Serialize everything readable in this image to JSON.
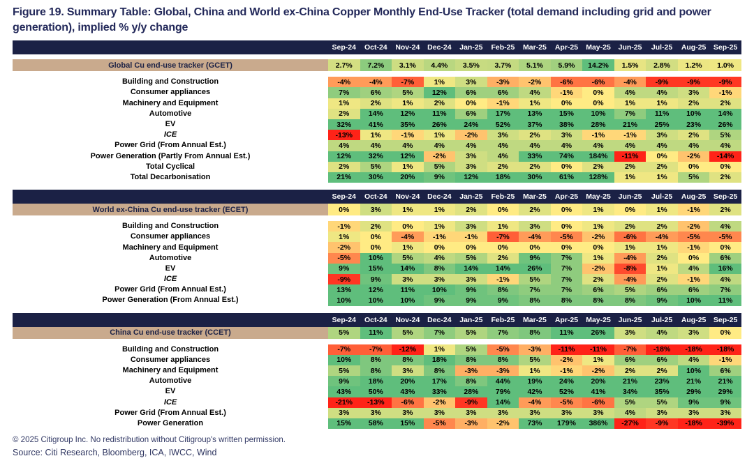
{
  "title": "Figure 19. Summary Table: Global, China and World ex-China Copper Monthly End-Use Tracker (total demand including grid and power generation), implied % y/y change",
  "footer": {
    "copyright": "© 2025 Citigroup Inc. No redistribution without Citigroup's written permission.",
    "source": "Source: Citi Research, Bloomberg, ICA, IWCC, Wind"
  },
  "chart_data": {
    "type": "heatmap",
    "title": "Figure 19. Summary Table: Global, China and World ex-China Copper Monthly End-Use Tracker (total demand including grid and power generation), implied % y/y change",
    "unit": "% y/y",
    "columns": [
      "Sep-24",
      "Oct-24",
      "Nov-24",
      "Dec-24",
      "Jan-25",
      "Feb-25",
      "Mar-25",
      "Apr-25",
      "May-25",
      "Jun-25",
      "Jul-25",
      "Aug-25",
      "Sep-25"
    ],
    "color_scale": {
      "negative": "#ff2318",
      "zero": "#ffeb84",
      "positive": "#5fbe7c",
      "clamp_abs_pct": 10
    },
    "tables": [
      {
        "id": "gcet",
        "tracker_label": "Global Cu end-use tracker (GCET)",
        "tracker_values": [
          "2.7%",
          "7.2%",
          "3.1%",
          "4.4%",
          "3.5%",
          "3.7%",
          "5.1%",
          "5.9%",
          "14.2%",
          "1.5%",
          "2.8%",
          "1.2%",
          "1.0%"
        ],
        "rows": [
          {
            "label": "Building and Construction",
            "italic": false,
            "values": [
              "-4%",
              "-4%",
              "-7%",
              "1%",
              "3%",
              "-3%",
              "-2%",
              "-6%",
              "-6%",
              "-4%",
              "-9%",
              "-9%",
              "-9%"
            ]
          },
          {
            "label": "Consumer appliances",
            "italic": false,
            "values": [
              "7%",
              "6%",
              "5%",
              "12%",
              "6%",
              "6%",
              "4%",
              "-1%",
              "0%",
              "4%",
              "4%",
              "3%",
              "-1%"
            ]
          },
          {
            "label": "Machinery and Equipment",
            "italic": false,
            "values": [
              "1%",
              "2%",
              "1%",
              "2%",
              "0%",
              "-1%",
              "1%",
              "0%",
              "0%",
              "1%",
              "1%",
              "2%",
              "2%"
            ]
          },
          {
            "label": "Automotive",
            "italic": false,
            "values": [
              "2%",
              "14%",
              "12%",
              "11%",
              "6%",
              "17%",
              "13%",
              "15%",
              "10%",
              "7%",
              "11%",
              "10%",
              "14%"
            ]
          },
          {
            "label": "EV",
            "italic": false,
            "values": [
              "32%",
              "41%",
              "35%",
              "26%",
              "24%",
              "52%",
              "37%",
              "38%",
              "28%",
              "21%",
              "25%",
              "23%",
              "26%"
            ]
          },
          {
            "label": "ICE",
            "italic": true,
            "values": [
              "-13%",
              "1%",
              "-1%",
              "1%",
              "-2%",
              "3%",
              "2%",
              "3%",
              "-1%",
              "-1%",
              "3%",
              "2%",
              "5%"
            ]
          },
          {
            "label": "Power Grid (From Annual Est.)",
            "italic": false,
            "values": [
              "4%",
              "4%",
              "4%",
              "4%",
              "4%",
              "4%",
              "4%",
              "4%",
              "4%",
              "4%",
              "4%",
              "4%",
              "4%"
            ]
          },
          {
            "label": "Power Generation (Partly From Annual Est.)",
            "italic": false,
            "values": [
              "12%",
              "32%",
              "12%",
              "-2%",
              "3%",
              "4%",
              "33%",
              "74%",
              "184%",
              "-11%",
              "0%",
              "-2%",
              "-14%"
            ]
          },
          {
            "label": "Total Cyclical",
            "italic": false,
            "values": [
              "2%",
              "5%",
              "1%",
              "5%",
              "3%",
              "2%",
              "2%",
              "0%",
              "2%",
              "2%",
              "2%",
              "0%",
              "0%"
            ]
          },
          {
            "label": "Total Decarbonisation",
            "italic": false,
            "values": [
              "21%",
              "30%",
              "20%",
              "9%",
              "12%",
              "18%",
              "30%",
              "61%",
              "128%",
              "1%",
              "1%",
              "5%",
              "2%"
            ]
          }
        ]
      },
      {
        "id": "ecet",
        "tracker_label": "World ex-China Cu end-use tracker (ECET)",
        "tracker_values": [
          "0%",
          "3%",
          "1%",
          "1%",
          "2%",
          "0%",
          "2%",
          "0%",
          "1%",
          "0%",
          "1%",
          "-1%",
          "2%"
        ],
        "rows": [
          {
            "label": "Building and Construction",
            "italic": false,
            "values": [
              "-1%",
              "2%",
              "0%",
              "1%",
              "3%",
              "1%",
              "3%",
              "0%",
              "1%",
              "2%",
              "2%",
              "-2%",
              "4%"
            ]
          },
          {
            "label": "Consumer appliances",
            "italic": false,
            "values": [
              "1%",
              "0%",
              "-4%",
              "-1%",
              "-1%",
              "-7%",
              "-4%",
              "-5%",
              "-2%",
              "-6%",
              "-4%",
              "-5%",
              "-5%"
            ]
          },
          {
            "label": "Machinery and Equipment",
            "italic": false,
            "values": [
              "-2%",
              "0%",
              "1%",
              "0%",
              "0%",
              "0%",
              "0%",
              "0%",
              "0%",
              "1%",
              "1%",
              "-1%",
              "0%"
            ]
          },
          {
            "label": "Automotive",
            "italic": false,
            "values": [
              "-5%",
              "10%",
              "5%",
              "4%",
              "5%",
              "2%",
              "9%",
              "7%",
              "1%",
              "-4%",
              "2%",
              "0%",
              "6%"
            ]
          },
          {
            "label": "EV",
            "italic": false,
            "values": [
              "9%",
              "15%",
              "14%",
              "8%",
              "14%",
              "14%",
              "26%",
              "7%",
              "-2%",
              "-8%",
              "1%",
              "4%",
              "16%"
            ]
          },
          {
            "label": "ICE",
            "italic": true,
            "values": [
              "-9%",
              "9%",
              "3%",
              "3%",
              "3%",
              "-1%",
              "5%",
              "7%",
              "2%",
              "-4%",
              "2%",
              "-1%",
              "4%"
            ]
          },
          {
            "label": "Power Grid (From Annual Est.)",
            "italic": false,
            "values": [
              "13%",
              "12%",
              "11%",
              "10%",
              "9%",
              "8%",
              "7%",
              "7%",
              "6%",
              "5%",
              "6%",
              "6%",
              "7%"
            ]
          },
          {
            "label": "Power Generation (From Annual Est.)",
            "italic": false,
            "values": [
              "10%",
              "10%",
              "10%",
              "9%",
              "9%",
              "9%",
              "8%",
              "8%",
              "8%",
              "8%",
              "9%",
              "10%",
              "11%"
            ]
          }
        ]
      },
      {
        "id": "ccet",
        "tracker_label": "China Cu end-use tracker (CCET)",
        "tracker_values": [
          "5%",
          "11%",
          "5%",
          "7%",
          "5%",
          "7%",
          "8%",
          "11%",
          "26%",
          "3%",
          "4%",
          "3%",
          "0%"
        ],
        "rows": [
          {
            "label": "Building and Construction",
            "italic": false,
            "values": [
              "-7%",
              "-7%",
              "-12%",
              "1%",
              "5%",
              "-5%",
              "-3%",
              "-11%",
              "-11%",
              "-7%",
              "-18%",
              "-18%",
              "-18%"
            ]
          },
          {
            "label": "Consumer appliances",
            "italic": false,
            "values": [
              "10%",
              "8%",
              "8%",
              "18%",
              "8%",
              "8%",
              "5%",
              "-2%",
              "1%",
              "6%",
              "6%",
              "4%",
              "-1%"
            ]
          },
          {
            "label": "Machinery and Equipment",
            "italic": false,
            "values": [
              "5%",
              "8%",
              "3%",
              "8%",
              "-3%",
              "-3%",
              "1%",
              "-1%",
              "-2%",
              "2%",
              "2%",
              "10%",
              "6%"
            ]
          },
          {
            "label": "Automotive",
            "italic": false,
            "values": [
              "9%",
              "18%",
              "20%",
              "17%",
              "8%",
              "44%",
              "19%",
              "24%",
              "20%",
              "21%",
              "23%",
              "21%",
              "21%"
            ]
          },
          {
            "label": "EV",
            "italic": false,
            "values": [
              "43%",
              "50%",
              "43%",
              "33%",
              "28%",
              "79%",
              "42%",
              "52%",
              "41%",
              "34%",
              "35%",
              "29%",
              "29%"
            ]
          },
          {
            "label": "ICE",
            "italic": true,
            "values": [
              "-21%",
              "-13%",
              "-6%",
              "-2%",
              "-9%",
              "14%",
              "-4%",
              "-5%",
              "-6%",
              "5%",
              "5%",
              "9%",
              "9%"
            ]
          },
          {
            "label": "Power Grid (From Annual Est.)",
            "italic": false,
            "values": [
              "3%",
              "3%",
              "3%",
              "3%",
              "3%",
              "3%",
              "3%",
              "3%",
              "3%",
              "4%",
              "3%",
              "3%",
              "3%"
            ]
          },
          {
            "label": "Power Generation",
            "italic": false,
            "values": [
              "15%",
              "58%",
              "15%",
              "-5%",
              "-3%",
              "-2%",
              "73%",
              "179%",
              "386%",
              "-27%",
              "-9%",
              "-18%",
              "-39%"
            ]
          }
        ]
      }
    ]
  }
}
